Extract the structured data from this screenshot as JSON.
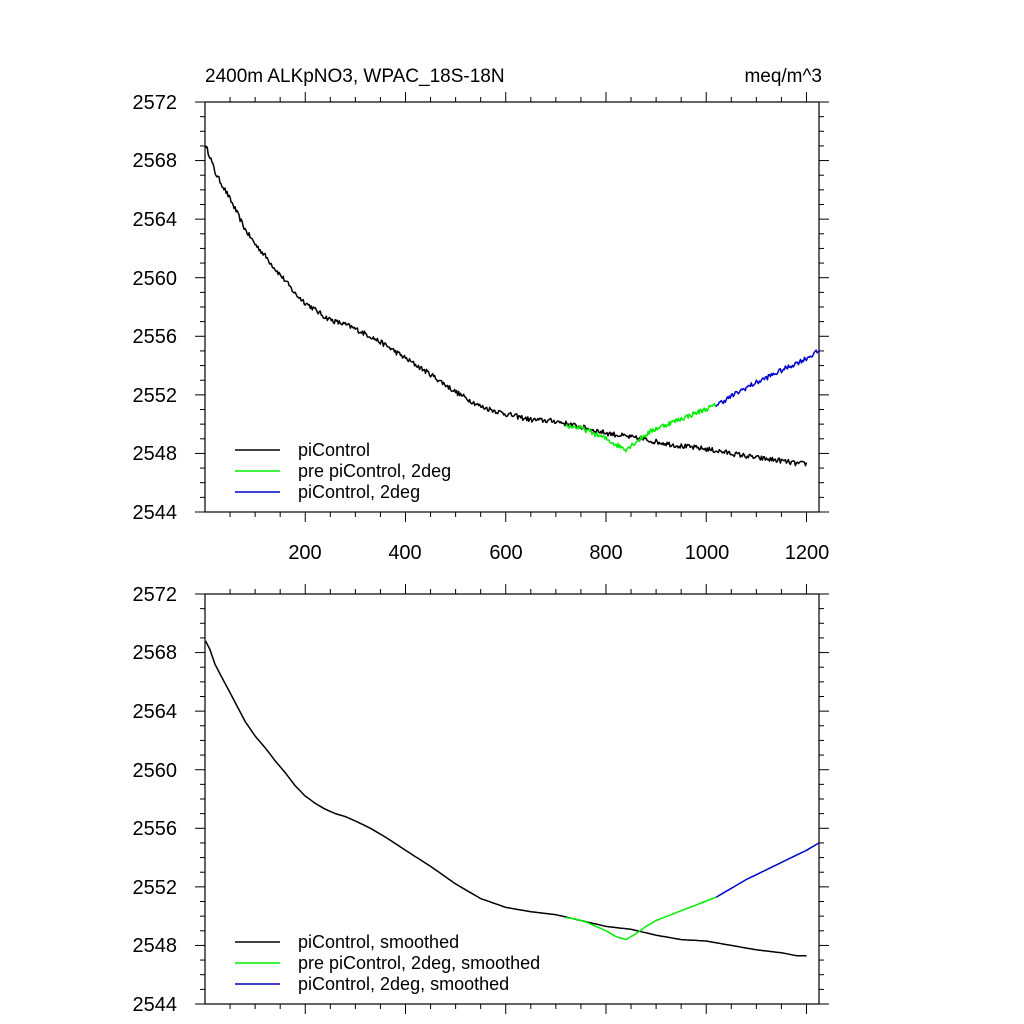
{
  "chart_data": [
    {
      "type": "line",
      "title": "2400m ALKpNO3, WPAC_18S-18N",
      "units": "meq/m^3",
      "xlim": [
        0,
        1225
      ],
      "ylim": [
        2544,
        2572
      ],
      "yticks": [
        2544,
        2548,
        2552,
        2556,
        2560,
        2564,
        2568,
        2572
      ],
      "xticks": [
        200,
        400,
        600,
        800,
        1000,
        1200
      ],
      "ytick_labels": [
        "2544",
        "2548",
        "2552",
        "2556",
        "2560",
        "2564",
        "2568",
        "2572"
      ],
      "xtick_labels": [
        "200",
        "400",
        "600",
        "800",
        "1000",
        "1200"
      ],
      "legend": [
        "piControl",
        "pre piControl, 2deg",
        "piControl, 2deg"
      ],
      "series": [
        {
          "name": "piControl",
          "color": "#000000",
          "points": [
            [
              1,
              2569.0
            ],
            [
              10,
              2568.3
            ],
            [
              20,
              2567.2
            ],
            [
              40,
              2566.0
            ],
            [
              60,
              2564.7
            ],
            [
              80,
              2563.3
            ],
            [
              100,
              2562.3
            ],
            [
              120,
              2561.5
            ],
            [
              140,
              2560.6
            ],
            [
              160,
              2559.8
            ],
            [
              180,
              2558.9
            ],
            [
              200,
              2558.3
            ],
            [
              220,
              2557.8
            ],
            [
              240,
              2557.3
            ],
            [
              260,
              2557.0
            ],
            [
              280,
              2556.8
            ],
            [
              300,
              2556.5
            ],
            [
              330,
              2556.0
            ],
            [
              360,
              2555.4
            ],
            [
              400,
              2554.5
            ],
            [
              450,
              2553.4
            ],
            [
              500,
              2552.2
            ],
            [
              550,
              2551.2
            ],
            [
              600,
              2550.7
            ],
            [
              650,
              2550.3
            ],
            [
              700,
              2550.2
            ],
            [
              750,
              2549.8
            ],
            [
              800,
              2549.4
            ],
            [
              850,
              2549.1
            ],
            [
              900,
              2548.8
            ],
            [
              950,
              2548.5
            ],
            [
              1000,
              2548.3
            ],
            [
              1050,
              2548.0
            ],
            [
              1100,
              2547.7
            ],
            [
              1150,
              2547.5
            ],
            [
              1180,
              2547.3
            ],
            [
              1200,
              2547.3
            ]
          ]
        },
        {
          "name": "pre piControl, 2deg",
          "color": "#00ee00",
          "points": [
            [
              720,
              2549.9
            ],
            [
              740,
              2549.8
            ],
            [
              760,
              2549.6
            ],
            [
              780,
              2549.3
            ],
            [
              800,
              2549.0
            ],
            [
              820,
              2548.6
            ],
            [
              840,
              2548.3
            ],
            [
              860,
              2548.8
            ],
            [
              880,
              2549.3
            ],
            [
              900,
              2549.7
            ],
            [
              930,
              2550.1
            ],
            [
              960,
              2550.5
            ],
            [
              990,
              2550.9
            ],
            [
              1020,
              2551.3
            ]
          ]
        },
        {
          "name": "piControl, 2deg",
          "color": "#0000cc",
          "points": [
            [
              1020,
              2551.3
            ],
            [
              1050,
              2551.9
            ],
            [
              1080,
              2552.5
            ],
            [
              1110,
              2553.0
            ],
            [
              1140,
              2553.5
            ],
            [
              1170,
              2554.0
            ],
            [
              1200,
              2554.5
            ],
            [
              1225,
              2555.0
            ]
          ]
        }
      ]
    },
    {
      "type": "line",
      "title": "",
      "xlim": [
        0,
        1225
      ],
      "ylim": [
        2544,
        2572
      ],
      "yticks": [
        2544,
        2548,
        2552,
        2556,
        2560,
        2564,
        2568,
        2572
      ],
      "xticks": [
        200,
        400,
        600,
        800,
        1000,
        1200
      ],
      "ytick_labels": [
        "2544",
        "2548",
        "2552",
        "2556",
        "2560",
        "2564",
        "2568",
        "2572"
      ],
      "legend": [
        "piControl, smoothed",
        "pre piControl, 2deg, smoothed",
        "piControl, 2deg, smoothed"
      ],
      "series": [
        {
          "name": "piControl, smoothed",
          "color": "#000000",
          "points": [
            [
              1,
              2568.8
            ],
            [
              10,
              2568.2
            ],
            [
              20,
              2567.2
            ],
            [
              40,
              2565.9
            ],
            [
              60,
              2564.6
            ],
            [
              80,
              2563.3
            ],
            [
              100,
              2562.3
            ],
            [
              120,
              2561.5
            ],
            [
              140,
              2560.6
            ],
            [
              160,
              2559.8
            ],
            [
              180,
              2558.9
            ],
            [
              200,
              2558.2
            ],
            [
              220,
              2557.7
            ],
            [
              240,
              2557.3
            ],
            [
              260,
              2557.0
            ],
            [
              280,
              2556.8
            ],
            [
              300,
              2556.5
            ],
            [
              330,
              2556.0
            ],
            [
              360,
              2555.4
            ],
            [
              400,
              2554.5
            ],
            [
              450,
              2553.4
            ],
            [
              500,
              2552.2
            ],
            [
              550,
              2551.2
            ],
            [
              600,
              2550.6
            ],
            [
              650,
              2550.3
            ],
            [
              700,
              2550.1
            ],
            [
              750,
              2549.7
            ],
            [
              800,
              2549.3
            ],
            [
              850,
              2549.1
            ],
            [
              900,
              2548.7
            ],
            [
              950,
              2548.4
            ],
            [
              1000,
              2548.3
            ],
            [
              1050,
              2548.0
            ],
            [
              1100,
              2547.7
            ],
            [
              1150,
              2547.5
            ],
            [
              1180,
              2547.3
            ],
            [
              1200,
              2547.3
            ]
          ]
        },
        {
          "name": "pre piControl, 2deg, smoothed",
          "color": "#00ee00",
          "points": [
            [
              720,
              2549.9
            ],
            [
              740,
              2549.8
            ],
            [
              760,
              2549.6
            ],
            [
              780,
              2549.3
            ],
            [
              800,
              2549.0
            ],
            [
              820,
              2548.6
            ],
            [
              840,
              2548.4
            ],
            [
              860,
              2548.8
            ],
            [
              880,
              2549.3
            ],
            [
              900,
              2549.7
            ],
            [
              930,
              2550.1
            ],
            [
              960,
              2550.5
            ],
            [
              990,
              2550.9
            ],
            [
              1020,
              2551.3
            ]
          ]
        },
        {
          "name": "piControl, 2deg, smoothed",
          "color": "#0000cc",
          "points": [
            [
              1020,
              2551.3
            ],
            [
              1050,
              2551.9
            ],
            [
              1080,
              2552.5
            ],
            [
              1110,
              2553.0
            ],
            [
              1140,
              2553.5
            ],
            [
              1170,
              2554.0
            ],
            [
              1200,
              2554.5
            ],
            [
              1225,
              2555.0
            ]
          ]
        }
      ]
    }
  ]
}
